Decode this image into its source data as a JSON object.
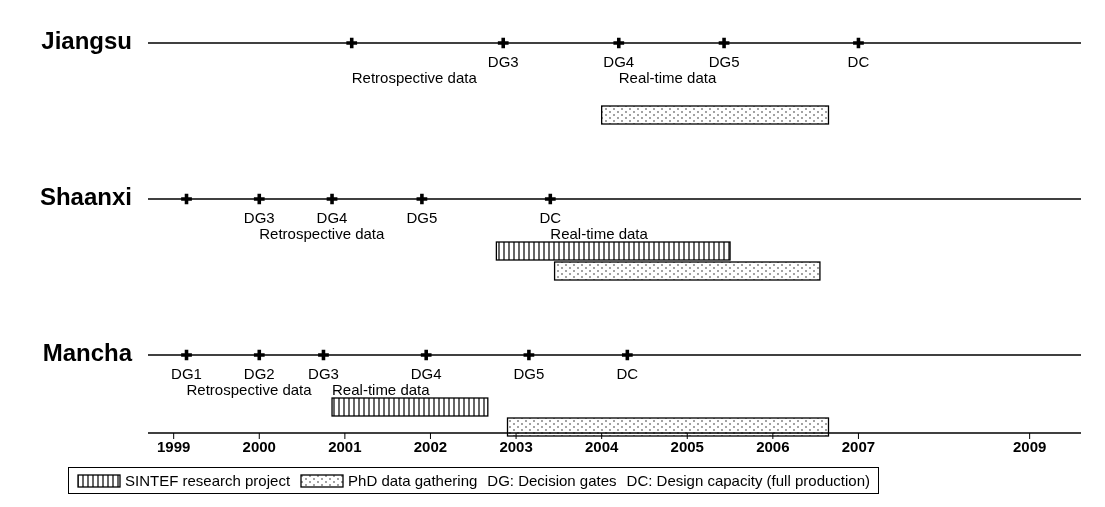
{
  "chart_data": {
    "type": "bar",
    "orientation": "horizontal",
    "categories": [
      "Jiangsu",
      "Shaanxi",
      "Mancha"
    ],
    "series": [
      {
        "name": "SINTEF research project",
        "color": "#000000",
        "base": [
          null,
          2002.77,
          2000.85
        ],
        "values": [
          null,
          2.73,
          1.82
        ]
      },
      {
        "name": "PhD data gathering",
        "color": "#000000",
        "base": [
          2004.0,
          2003.45,
          2002.9
        ],
        "values": [
          2.65,
          3.1,
          3.75
        ]
      },
      {
        "type": "scatter",
        "color": "#000000",
        "x": [
          "Jiangsu",
          "Jiangsu",
          "Jiangsu",
          "Jiangsu",
          "Jiangsu",
          "Shaanxi",
          "Shaanxi",
          "Shaanxi",
          "Shaanxi",
          "Shaanxi",
          "Mancha",
          "Mancha",
          "Mancha",
          "Mancha",
          "Mancha",
          "Mancha"
        ],
        "values": [
          2001.08,
          2002.85,
          2004.2,
          2005.43,
          2007.0,
          1999.15,
          2000.0,
          2000.85,
          2001.9,
          2003.4,
          1999.15,
          2000.0,
          2000.75,
          2001.95,
          2003.15,
          2004.3
        ],
        "value_labels": [
          null,
          "DG3",
          "DG4",
          "DG5",
          "DC",
          null,
          "DG3",
          "DG4",
          "DG5",
          "DC",
          "DG1",
          "DG2",
          "DG3",
          "DG4",
          "DG5",
          "DC"
        ]
      }
    ],
    "xlim": [
      1998.7,
      2009.6
    ],
    "xticks": [
      1999,
      2000,
      2001,
      2002,
      2003,
      2004,
      2005,
      2006,
      2007,
      2009
    ],
    "annotations": [
      {
        "text": "Retrospective data",
        "x": 2001.08,
        "y": "Jiangsu"
      },
      {
        "text": "Real-time data",
        "x": 2004.2,
        "y": "Jiangsu"
      },
      {
        "text": "Retrospective data",
        "x": 2000.0,
        "y": "Shaanxi"
      },
      {
        "text": "Real-time data",
        "x": 2003.4,
        "y": "Shaanxi"
      },
      {
        "text": "Retrospective data",
        "x": 1999.15,
        "y": "Mancha"
      },
      {
        "text": "Real-time data",
        "x": 2000.85,
        "y": "Mancha"
      },
      "DG: Decision gates",
      "DC: Design capacity (full production)"
    ],
    "grid": "y",
    "legend": "bottom",
    "marker": "cross"
  }
}
